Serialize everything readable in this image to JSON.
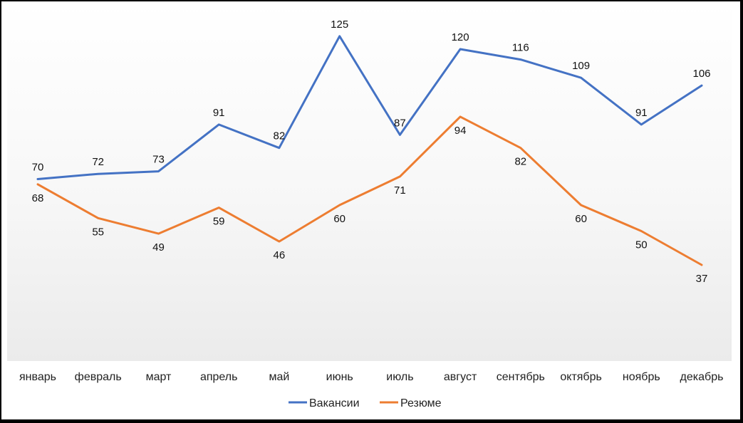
{
  "chart_data": {
    "type": "line",
    "categories": [
      "январь",
      "февраль",
      "март",
      "апрель",
      "май",
      "июнь",
      "июль",
      "август",
      "сентябрь",
      "октябрь",
      "ноябрь",
      "декабрь"
    ],
    "series": [
      {
        "name": "Вакансии",
        "color": "#4472C4",
        "values": [
          70,
          72,
          73,
          91,
          82,
          125,
          87,
          120,
          116,
          109,
          91,
          106
        ],
        "label_position": "above"
      },
      {
        "name": "Резюме",
        "color": "#ED7D31",
        "values": [
          68,
          55,
          49,
          59,
          46,
          60,
          71,
          94,
          82,
          60,
          50,
          37
        ],
        "label_position": "below"
      }
    ],
    "title": "",
    "xlabel": "",
    "ylabel": "",
    "ylim": [
      0,
      135
    ],
    "grid": false,
    "legend": "bottom",
    "plot_background": "gradient white to light gray"
  }
}
